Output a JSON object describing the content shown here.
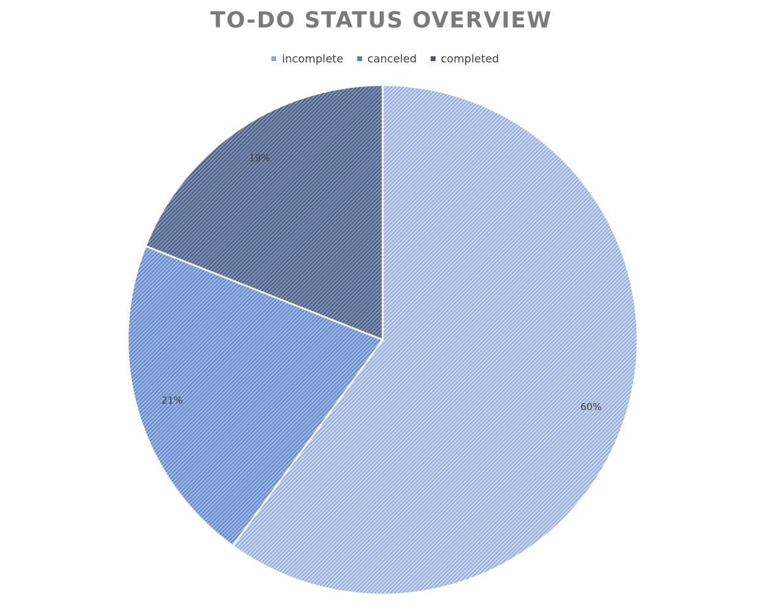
{
  "chart_data": {
    "type": "pie",
    "title": "TO-DO STATUS OVERVIEW",
    "legend_position": "top",
    "categories": [
      "incomplete",
      "canceled",
      "completed"
    ],
    "values": [
      60,
      21,
      19
    ],
    "data_labels": [
      "60%",
      "21%",
      "19%"
    ],
    "colors": [
      "#c9d6ee",
      "#9fb9e2",
      "#7f93b8"
    ],
    "stripe_colors": [
      "#8ea7d6",
      "#5b80c8",
      "#44577a"
    ],
    "start_angle_deg": 0,
    "direction": "clockwise"
  }
}
